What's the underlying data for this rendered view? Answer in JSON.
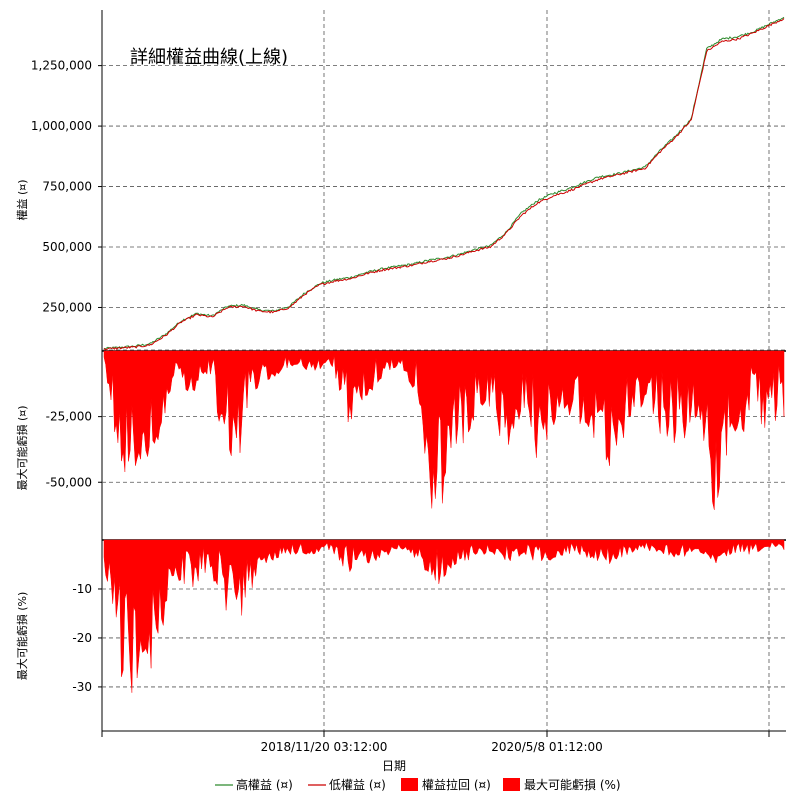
{
  "chart_data": [
    {
      "type": "line",
      "title": "詳細權益曲線(上線)",
      "ylabel": "權益 (¤)",
      "ylim": [
        70000,
        1480000
      ],
      "yticks": [
        250000,
        500000,
        750000,
        1000000,
        1250000
      ],
      "ytick_labels": [
        "250,000",
        "500,000",
        "750,000",
        "1,000,000",
        "1,250,000"
      ],
      "series": [
        {
          "name": "高權益 (¤)",
          "color": "#2e8b2e",
          "values": [
            80000,
            85000,
            90000,
            100000,
            140000,
            195000,
            225000,
            215000,
            255000,
            260000,
            240000,
            235000,
            255000,
            310000,
            350000,
            365000,
            375000,
            395000,
            410000,
            420000,
            430000,
            445000,
            455000,
            470000,
            490000,
            505000,
            560000,
            640000,
            690000,
            720000,
            740000,
            765000,
            790000,
            800000,
            815000,
            830000,
            900000,
            960000,
            1030000,
            1320000,
            1360000,
            1370000,
            1390000,
            1420000,
            1450000
          ]
        },
        {
          "name": "低權益 (¤)",
          "color": "#cc0000",
          "values": [
            78000,
            82000,
            86000,
            95000,
            135000,
            190000,
            220000,
            210000,
            250000,
            255000,
            235000,
            230000,
            250000,
            305000,
            345000,
            360000,
            370000,
            390000,
            405000,
            415000,
            425000,
            440000,
            450000,
            465000,
            485000,
            500000,
            555000,
            630000,
            680000,
            710000,
            730000,
            755000,
            780000,
            795000,
            810000,
            825000,
            895000,
            955000,
            1025000,
            1310000,
            1350000,
            1360000,
            1385000,
            1415000,
            1445000
          ]
        }
      ]
    },
    {
      "type": "area",
      "ylabel": "最大可能虧損 (¤)",
      "ylim": [
        -72000,
        0
      ],
      "yticks": [
        -25000,
        -50000
      ],
      "ytick_labels": [
        "-25,000",
        "-50,000"
      ],
      "series": [
        {
          "name": "權益拉回 (¤)",
          "color": "#ff0000",
          "values": [
            -5000,
            -50000,
            -45000,
            -40000,
            -10000,
            -18000,
            -8000,
            -40000,
            -42000,
            -12000,
            -10000,
            -6000,
            -8000,
            -5000,
            -30000,
            -20000,
            -10000,
            -5000,
            -20000,
            -71000,
            -45000,
            -30000,
            -20000,
            -40000,
            -25000,
            -45000,
            -30000,
            -25000,
            -35000,
            -47000,
            -30000,
            -20000,
            -35000,
            -40000,
            -25000,
            -65000,
            -30000,
            -35000,
            -30000,
            -25000
          ]
        }
      ]
    },
    {
      "type": "area",
      "ylabel": "最大可能虧損 (%)",
      "ylim": [
        -39,
        0
      ],
      "yticks": [
        -10,
        -20,
        -30
      ],
      "ytick_labels": [
        "-10",
        "-20",
        "-30"
      ],
      "series": [
        {
          "name": "最大可能虧損 (%)",
          "color": "#ff0000",
          "values": [
            -5,
            -36,
            -30,
            -25,
            -8,
            -10,
            -6,
            -15,
            -16,
            -5,
            -4,
            -3,
            -3,
            -2,
            -7,
            -5,
            -4,
            -2,
            -4,
            -10,
            -6,
            -4,
            -3,
            -5,
            -3,
            -5,
            -4,
            -3,
            -4,
            -5,
            -3,
            -2,
            -3,
            -4,
            -2,
            -5,
            -3,
            -3,
            -2,
            -2
          ]
        }
      ]
    }
  ],
  "xaxis": {
    "label": "日期",
    "tick_labels": [
      "2018/11/20 03:12:00",
      "2020/5/8 01:12:00"
    ]
  },
  "legend": {
    "placement": "bottom",
    "items": [
      {
        "label": "高權益 (¤)",
        "kind": "line",
        "color": "#2e8b2e"
      },
      {
        "label": "低權益 (¤)",
        "kind": "line",
        "color": "#cc0000"
      },
      {
        "label": "權益拉回 (¤)",
        "kind": "box",
        "color": "#ff0000"
      },
      {
        "label": "最大可能虧損 (%)",
        "kind": "box",
        "color": "#ff0000"
      }
    ]
  }
}
